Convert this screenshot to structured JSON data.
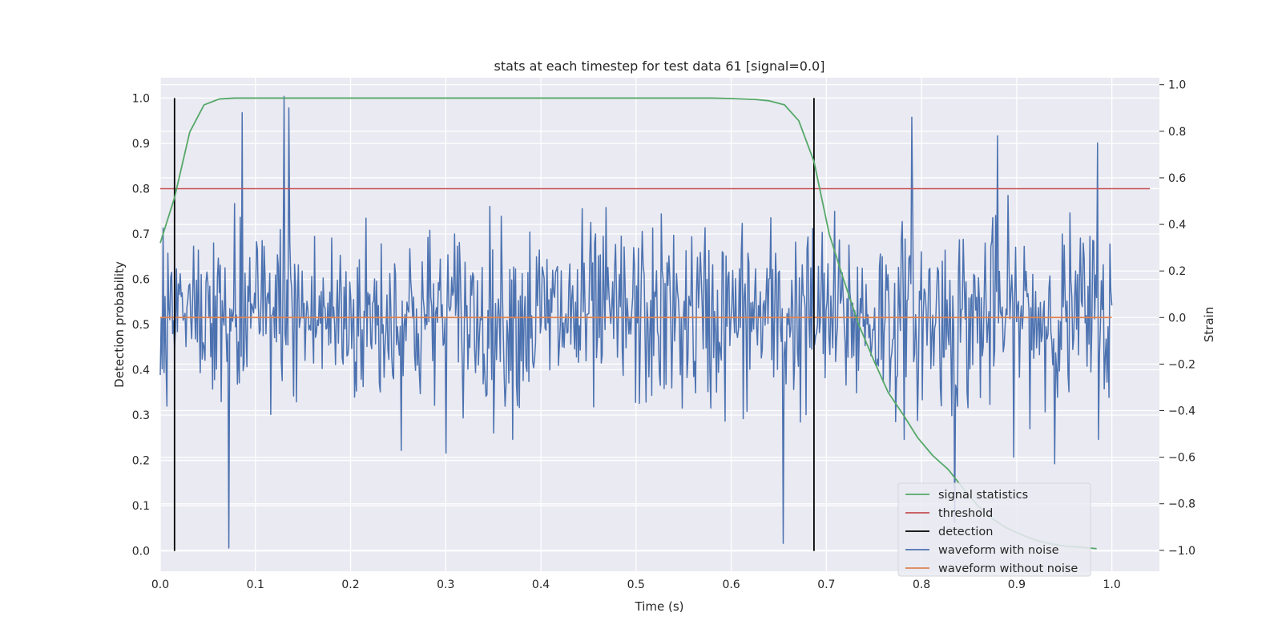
{
  "chart_data": {
    "type": "line",
    "title": "stats at each timestep for test data 61 [signal=0.0]",
    "xlabel": "Time (s)",
    "ylabel": "Detection probability",
    "y2label": "Strain",
    "xlim": [
      0.0,
      1.05
    ],
    "ylim": [
      -0.045,
      1.045
    ],
    "y2lim": [
      -1.09,
      1.03
    ],
    "xticks": [
      "0.0",
      "0.1",
      "0.2",
      "0.3",
      "0.4",
      "0.5",
      "0.6",
      "0.7",
      "0.8",
      "0.9",
      "1.0"
    ],
    "yticks": [
      "0.0",
      "0.1",
      "0.2",
      "0.3",
      "0.4",
      "0.5",
      "0.6",
      "0.7",
      "0.8",
      "0.9",
      "1.0"
    ],
    "y2ticks": [
      "−1.0",
      "−0.8",
      "−0.6",
      "−0.4",
      "−0.2",
      "0.0",
      "0.2",
      "0.4",
      "0.6",
      "0.8",
      "1.0"
    ],
    "grid": true,
    "legend_position": "lower-right",
    "colors": {
      "background": "#eaeaf2",
      "grid": "#ffffff",
      "signal_statistics": "#55a868",
      "threshold": "#c44e52",
      "detection": "#000000",
      "waveform_with_noise": "#4c72b0",
      "waveform_without_noise": "#dd8452"
    },
    "legend": [
      {
        "key": "signal_statistics",
        "label": "signal statistics"
      },
      {
        "key": "threshold",
        "label": "threshold"
      },
      {
        "key": "detection",
        "label": "detection"
      },
      {
        "key": "waveform_with_noise",
        "label": "waveform with noise"
      },
      {
        "key": "waveform_without_noise",
        "label": "waveform without noise"
      }
    ],
    "signal_statistics": {
      "x": [
        0.0,
        0.015,
        0.031,
        0.046,
        0.062,
        0.078,
        0.093,
        0.109,
        0.2,
        0.3,
        0.4,
        0.5,
        0.58,
        0.6,
        0.625,
        0.64,
        0.656,
        0.671,
        0.687,
        0.703,
        0.718,
        0.734,
        0.75,
        0.765,
        0.781,
        0.796,
        0.812,
        0.828,
        0.843,
        0.859,
        0.875,
        0.89,
        0.906,
        0.921,
        0.937,
        0.953,
        0.968,
        0.984
      ],
      "y": [
        0.68,
        0.78,
        0.925,
        0.985,
        0.998,
        1.0,
        1.0,
        1.0,
        1.0,
        1.0,
        1.0,
        1.0,
        1.0,
        0.999,
        0.997,
        0.994,
        0.985,
        0.95,
        0.86,
        0.7,
        0.6,
        0.5,
        0.42,
        0.35,
        0.3,
        0.25,
        0.21,
        0.18,
        0.14,
        0.1,
        0.07,
        0.05,
        0.035,
        0.023,
        0.015,
        0.01,
        0.008,
        0.005
      ]
    },
    "threshold": {
      "x": [
        0.0,
        1.04
      ],
      "y": [
        0.8,
        0.8
      ]
    },
    "detection": {
      "x": [
        0.015,
        0.687
      ],
      "ymin": 0.0,
      "ymax": 1.0
    },
    "waveform_without_noise": {
      "x": [
        0.0,
        1.0
      ],
      "strain": [
        0.0,
        0.0
      ]
    },
    "waveform_with_noise": {
      "x_start": 0.0,
      "x_end": 1.0,
      "n_points": 1000,
      "strain_std": 0.2,
      "strain_min": -0.99,
      "strain_max": 0.95,
      "spikes": [
        {
          "x": 0.072,
          "strain": -0.99
        },
        {
          "x": 0.13,
          "strain": 0.95
        },
        {
          "x": 0.135,
          "strain": 0.9
        },
        {
          "x": 0.086,
          "strain": 0.88
        },
        {
          "x": 0.655,
          "strain": -0.97
        },
        {
          "x": 0.79,
          "strain": 0.86
        },
        {
          "x": 0.835,
          "strain": -0.88
        },
        {
          "x": 0.88,
          "strain": 0.78
        },
        {
          "x": 0.985,
          "strain": 0.75
        }
      ]
    }
  }
}
